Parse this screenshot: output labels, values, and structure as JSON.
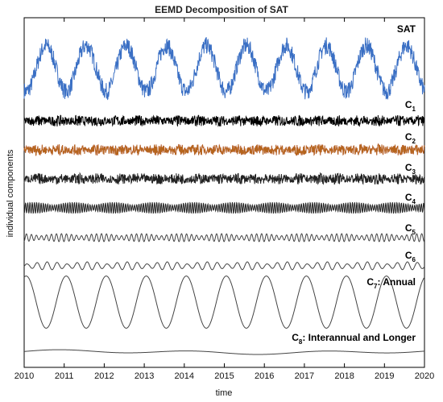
{
  "chart_data": {
    "type": "line",
    "title": "EEMD Decomposition of SAT",
    "xlabel": "time",
    "ylabel": "individual components",
    "xlim": [
      2010,
      2020
    ],
    "x_ticks": [
      "2010",
      "2011",
      "2012",
      "2013",
      "2014",
      "2015",
      "2016",
      "2017",
      "2018",
      "2019",
      "2020"
    ],
    "grid": false,
    "series": [
      {
        "name": "SAT",
        "label_main": "SAT",
        "label_sub": "",
        "label_suffix": "",
        "color": "#3a6fc4",
        "kind": "sat",
        "cycles_per_year": 1,
        "amplitude": "large"
      },
      {
        "name": "C1",
        "label_main": "C",
        "label_sub": "1",
        "label_suffix": "",
        "color": "#000000",
        "kind": "noise",
        "cycles_per_year": 150,
        "amplitude": "small"
      },
      {
        "name": "C2",
        "label_main": "C",
        "label_sub": "2",
        "label_suffix": "",
        "color": "#b5651d",
        "kind": "noise",
        "cycles_per_year": 80,
        "amplitude": "small"
      },
      {
        "name": "C3",
        "label_main": "C",
        "label_sub": "3",
        "label_suffix": "",
        "color": "#222222",
        "kind": "noise",
        "cycles_per_year": 40,
        "amplitude": "small"
      },
      {
        "name": "C4",
        "label_main": "C",
        "label_sub": "4",
        "label_suffix": "",
        "color": "#222222",
        "kind": "osc",
        "cycles_per_year": 18,
        "amplitude": "small"
      },
      {
        "name": "C5",
        "label_main": "C",
        "label_sub": "5",
        "label_suffix": "",
        "color": "#444444",
        "kind": "osc",
        "cycles_per_year": 8,
        "amplitude": "small"
      },
      {
        "name": "C6",
        "label_main": "C",
        "label_sub": "6",
        "label_suffix": "",
        "color": "#444444",
        "kind": "osc",
        "cycles_per_year": 4,
        "amplitude": "small"
      },
      {
        "name": "C7",
        "label_main": "C",
        "label_sub": "7",
        "label_suffix": ": Annual",
        "color": "#444444",
        "kind": "annual",
        "cycles_per_year": 1,
        "amplitude": "large"
      },
      {
        "name": "C8",
        "label_main": "C",
        "label_sub": "8",
        "label_suffix": ": Interannual and Longer",
        "color": "#444444",
        "kind": "trend",
        "cycles_per_year": 0.3,
        "amplitude": "tiny"
      }
    ]
  }
}
